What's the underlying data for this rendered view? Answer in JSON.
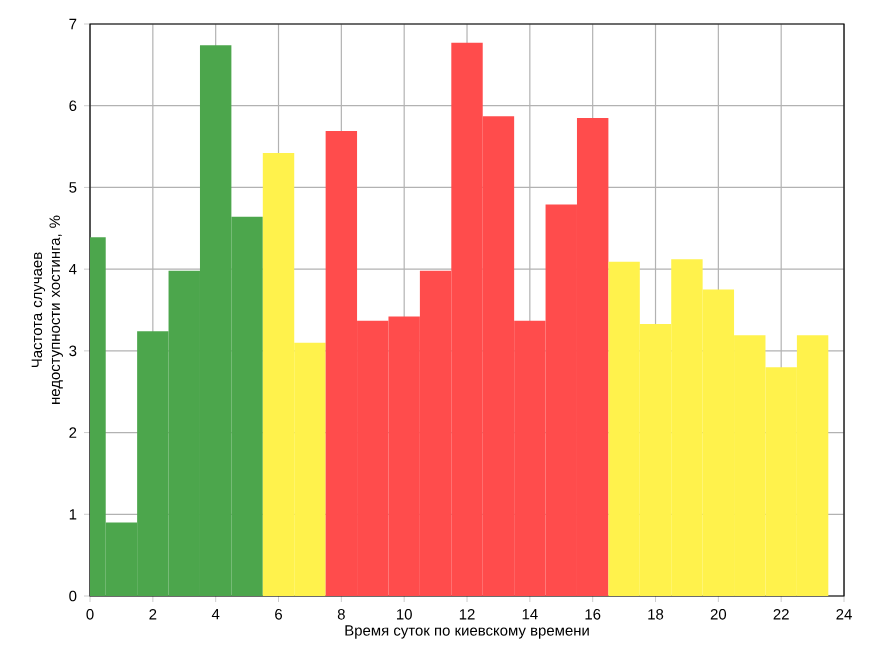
{
  "chart_data": {
    "type": "bar",
    "xlabel": "Время суток по киевскому времени",
    "ylabel": "Частота случаев недоступности хостинга, %",
    "x": [
      0,
      1,
      2,
      3,
      4,
      5,
      6,
      7,
      8,
      9,
      10,
      11,
      12,
      13,
      14,
      15,
      16,
      17,
      18,
      19,
      20,
      21,
      22,
      23
    ],
    "values": [
      4.39,
      0.9,
      3.24,
      3.98,
      6.74,
      4.64,
      5.42,
      3.1,
      5.69,
      3.37,
      3.42,
      3.98,
      6.77,
      5.87,
      3.37,
      4.79,
      5.85,
      4.09,
      3.33,
      4.12,
      3.75,
      3.19,
      2.8,
      3.19
    ],
    "colors": [
      "#4ca64c",
      "#4ca64c",
      "#4ca64c",
      "#4ca64c",
      "#4ca64c",
      "#4ca64c",
      "#fff24c",
      "#fff24c",
      "#ff4c4c",
      "#ff4c4c",
      "#ff4c4c",
      "#ff4c4c",
      "#ff4c4c",
      "#ff4c4c",
      "#ff4c4c",
      "#ff4c4c",
      "#ff4c4c",
      "#fff24c",
      "#fff24c",
      "#fff24c",
      "#fff24c",
      "#fff24c",
      "#fff24c",
      "#fff24c"
    ],
    "xlim": [
      0,
      24
    ],
    "ylim": [
      0,
      7
    ],
    "xticks": [
      0,
      2,
      4,
      6,
      8,
      10,
      12,
      14,
      16,
      18,
      20,
      22,
      24
    ],
    "yticks": [
      0,
      1,
      2,
      3,
      4,
      5,
      6,
      7
    ],
    "grid": true
  }
}
